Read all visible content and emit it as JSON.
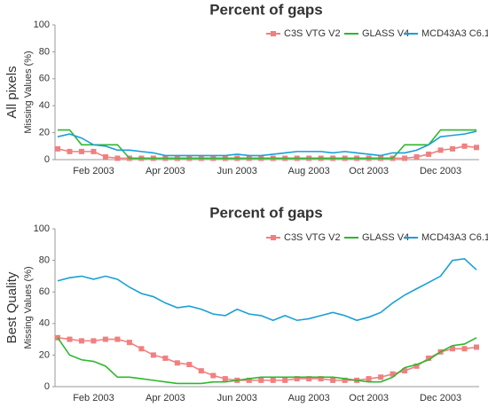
{
  "chart_data": [
    {
      "type": "line",
      "title": "Percent of gaps",
      "y_group_label": "All pixels",
      "ylabel": "Missing Values (%)",
      "categories": [
        null,
        null,
        null,
        "Feb 2003",
        null,
        null,
        null,
        null,
        null,
        "Apr 2003",
        null,
        null,
        null,
        null,
        null,
        "Jun 2003",
        null,
        null,
        null,
        null,
        null,
        "Aug 2003",
        null,
        null,
        null,
        null,
        "Oct 2003",
        null,
        null,
        null,
        null,
        null,
        "Dec 2003",
        null,
        null,
        null
      ],
      "ylim": [
        0,
        100
      ],
      "yticks": [
        0,
        20,
        40,
        60,
        80,
        100
      ],
      "legend": "top-right",
      "series": [
        {
          "name": "C3S VTG V2",
          "color": "#f08080",
          "marker": "square",
          "values": [
            8,
            6,
            6,
            6,
            2,
            1,
            1,
            1,
            1,
            1,
            1,
            1,
            1,
            1,
            1,
            1,
            1,
            1,
            1,
            1,
            1,
            1,
            1,
            1,
            1,
            1,
            1,
            1,
            1,
            1,
            2,
            4,
            7,
            8,
            10,
            9
          ]
        },
        {
          "name": "GLASS V4",
          "color": "#2db82d",
          "values": [
            22,
            22,
            11,
            11,
            11,
            11,
            1,
            1,
            1,
            1,
            1,
            1,
            1,
            1,
            1,
            1,
            1,
            1,
            1,
            1,
            1,
            1,
            1,
            1,
            1,
            1,
            1,
            1,
            1,
            11,
            11,
            11,
            22,
            22,
            22,
            22
          ]
        },
        {
          "name": "MCD43A3 C6.1",
          "color": "#1a9fd6",
          "values": [
            17,
            19,
            16,
            11,
            10,
            7,
            7,
            6,
            5,
            3,
            3,
            3,
            3,
            3,
            3,
            4,
            3,
            3,
            4,
            5,
            6,
            6,
            6,
            5,
            6,
            5,
            4,
            3,
            5,
            5,
            7,
            11,
            17,
            18,
            19,
            21
          ]
        }
      ]
    },
    {
      "type": "line",
      "title": "Percent of gaps",
      "y_group_label": "Best Quality",
      "ylabel": "Missing Values (%)",
      "categories": [
        null,
        null,
        null,
        "Feb 2003",
        null,
        null,
        null,
        null,
        null,
        "Apr 2003",
        null,
        null,
        null,
        null,
        null,
        "Jun 2003",
        null,
        null,
        null,
        null,
        null,
        "Aug 2003",
        null,
        null,
        null,
        null,
        "Oct 2003",
        null,
        null,
        null,
        null,
        null,
        "Dec 2003",
        null,
        null,
        null
      ],
      "ylim": [
        0,
        100
      ],
      "yticks": [
        0,
        20,
        40,
        60,
        80,
        100
      ],
      "legend": "top-right",
      "series": [
        {
          "name": "C3S VTG V2",
          "color": "#f08080",
          "marker": "square",
          "values": [
            31,
            30,
            29,
            29,
            30,
            30,
            28,
            24,
            20,
            18,
            15,
            14,
            10,
            7,
            5,
            4,
            4,
            4,
            4,
            4,
            5,
            5,
            5,
            4,
            4,
            4,
            5,
            6,
            8,
            10,
            13,
            18,
            22,
            24,
            24,
            25
          ]
        },
        {
          "name": "GLASS V4",
          "color": "#2db82d",
          "values": [
            31,
            20,
            17,
            16,
            13,
            6,
            6,
            5,
            4,
            3,
            2,
            2,
            2,
            3,
            3,
            4,
            5,
            6,
            6,
            6,
            6,
            6,
            6,
            6,
            5,
            4,
            3,
            3,
            6,
            12,
            14,
            17,
            22,
            26,
            27,
            31
          ]
        },
        {
          "name": "MCD43A3 C6.1",
          "color": "#1a9fd6",
          "values": [
            67,
            69,
            70,
            68,
            70,
            68,
            63,
            59,
            57,
            53,
            50,
            51,
            49,
            46,
            45,
            49,
            46,
            45,
            42,
            45,
            42,
            43,
            45,
            47,
            45,
            42,
            44,
            47,
            53,
            58,
            62,
            66,
            70,
            80,
            81,
            74
          ]
        }
      ]
    }
  ]
}
